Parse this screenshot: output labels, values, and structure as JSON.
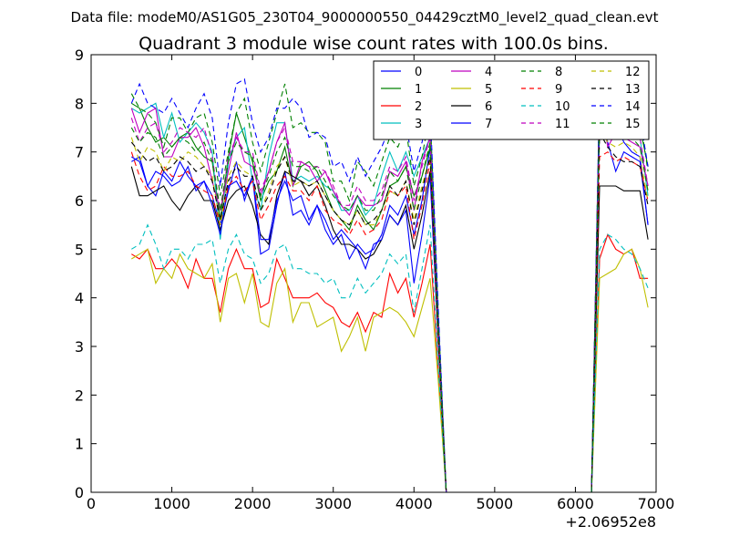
{
  "figure": {
    "suptitle": "Data file: modeM0/AS1G05_230T04_9000000550_04429cztM0_level2_quad_clean.evt"
  },
  "chart_data": {
    "type": "line",
    "title": "Quadrant 3 module wise count rates with 100.0s bins.",
    "xlabel": "",
    "ylabel": "",
    "x_offset_label": "+2.06952e8",
    "xlim": [
      0,
      7000
    ],
    "ylim": [
      0,
      9
    ],
    "x_ticks": [
      "0",
      "1000",
      "2000",
      "3000",
      "4000",
      "5000",
      "6000",
      "7000"
    ],
    "y_ticks": [
      "0",
      "1",
      "2",
      "3",
      "4",
      "5",
      "6",
      "7",
      "8",
      "9"
    ],
    "grid": false,
    "legend_position": "top-right",
    "legend_columns": 4,
    "x": [
      500,
      600,
      700,
      800,
      900,
      1000,
      1100,
      1200,
      1300,
      1400,
      1500,
      1600,
      1700,
      1800,
      1900,
      2000,
      2100,
      2200,
      2300,
      2400,
      2500,
      2600,
      2700,
      2800,
      2900,
      3000,
      3100,
      3200,
      3300,
      3400,
      3500,
      3600,
      3700,
      3800,
      3900,
      4000,
      4100,
      4200,
      4300,
      4400,
      6200,
      6300,
      6400,
      6500,
      6600,
      6700,
      6800,
      6900
    ],
    "series": [
      {
        "name": "0",
        "color": "#0000ff",
        "dash": "solid",
        "values": [
          6.9,
          6.8,
          6.3,
          6.1,
          6.6,
          6.4,
          6.8,
          6.5,
          6.3,
          6.4,
          6.1,
          5.5,
          6.2,
          6.8,
          6.0,
          6.5,
          4.9,
          5.0,
          5.9,
          6.6,
          5.7,
          5.8,
          5.5,
          5.9,
          5.4,
          5.1,
          5.3,
          4.8,
          5.1,
          4.9,
          5.0,
          5.3,
          5.9,
          5.7,
          6.1,
          5.3,
          6.0,
          7.1,
          3.3,
          0,
          0,
          7.8,
          7.2,
          6.6,
          7.0,
          6.9,
          6.8,
          5.5
        ]
      },
      {
        "name": "1",
        "color": "#008000",
        "dash": "solid",
        "values": [
          8.0,
          7.9,
          7.5,
          7.2,
          7.3,
          7.1,
          7.3,
          7.4,
          7.1,
          6.9,
          6.8,
          5.6,
          6.9,
          7.8,
          7.3,
          6.8,
          6.0,
          6.4,
          6.6,
          7.1,
          6.3,
          6.7,
          6.8,
          6.6,
          6.2,
          5.8,
          5.6,
          5.4,
          5.9,
          5.6,
          5.4,
          5.8,
          6.3,
          6.4,
          6.7,
          6.1,
          6.5,
          7.1,
          3.3,
          0,
          0,
          8.1,
          7.8,
          7.5,
          7.7,
          7.6,
          7.5,
          6.7
        ]
      },
      {
        "name": "2",
        "color": "#ff0000",
        "dash": "solid",
        "values": [
          4.9,
          4.8,
          5.0,
          4.6,
          4.6,
          4.8,
          4.6,
          4.2,
          4.8,
          4.4,
          4.4,
          3.7,
          4.6,
          5.0,
          4.6,
          4.6,
          3.8,
          3.9,
          4.8,
          4.4,
          4.0,
          4.0,
          4.0,
          4.1,
          3.9,
          3.8,
          3.5,
          3.4,
          3.7,
          3.3,
          3.7,
          3.6,
          4.5,
          4.1,
          4.4,
          3.6,
          4.3,
          5.1,
          2.5,
          0,
          0,
          4.8,
          5.3,
          5.0,
          4.9,
          5.0,
          4.4,
          4.4
        ]
      },
      {
        "name": "3",
        "color": "#00bfbf",
        "dash": "solid",
        "values": [
          7.9,
          7.8,
          7.9,
          8.0,
          7.3,
          7.8,
          7.2,
          7.4,
          7.6,
          7.4,
          7.0,
          5.2,
          6.8,
          7.3,
          7.5,
          6.4,
          5.8,
          6.9,
          7.6,
          7.6,
          6.4,
          6.5,
          6.4,
          6.5,
          6.3,
          6.2,
          5.8,
          5.8,
          6.1,
          5.7,
          5.9,
          6.5,
          7.0,
          6.6,
          7.0,
          6.5,
          6.9,
          7.3,
          3.4,
          0,
          0,
          8.1,
          7.6,
          7.4,
          7.7,
          7.7,
          7.3,
          6.1
        ]
      },
      {
        "name": "4",
        "color": "#bf00bf",
        "dash": "solid",
        "values": [
          7.9,
          7.4,
          7.8,
          7.9,
          6.9,
          6.9,
          7.3,
          7.3,
          7.5,
          7.1,
          6.4,
          5.8,
          6.6,
          7.4,
          6.8,
          6.7,
          6.1,
          6.6,
          7.2,
          7.6,
          6.3,
          6.8,
          6.7,
          6.4,
          6.6,
          6.2,
          5.9,
          5.7,
          6.1,
          5.9,
          5.9,
          6.0,
          6.6,
          6.5,
          6.8,
          5.8,
          6.8,
          7.3,
          3.4,
          0,
          0,
          8.2,
          7.1,
          7.4,
          7.3,
          7.2,
          7.1,
          6.3
        ]
      },
      {
        "name": "5",
        "color": "#bfbf00",
        "dash": "solid",
        "values": [
          4.8,
          4.9,
          5.0,
          4.3,
          4.6,
          4.4,
          4.9,
          4.6,
          4.5,
          4.4,
          4.7,
          3.5,
          4.4,
          4.5,
          3.9,
          4.5,
          3.5,
          3.4,
          4.3,
          4.6,
          3.5,
          3.9,
          3.9,
          3.4,
          3.5,
          3.6,
          2.9,
          3.2,
          3.6,
          2.9,
          3.6,
          3.7,
          3.8,
          3.7,
          3.5,
          3.2,
          3.8,
          4.4,
          2.3,
          0,
          0,
          4.4,
          4.5,
          4.6,
          4.9,
          5.0,
          4.6,
          3.8
        ]
      },
      {
        "name": "6",
        "color": "#000000",
        "dash": "solid",
        "values": [
          6.7,
          6.1,
          6.1,
          6.2,
          6.3,
          6.0,
          5.8,
          6.1,
          6.3,
          6.0,
          6.0,
          5.4,
          6.0,
          6.2,
          6.3,
          5.9,
          5.3,
          5.1,
          6.1,
          6.6,
          6.5,
          6.4,
          6.1,
          6.3,
          5.9,
          5.4,
          5.1,
          5.1,
          5.0,
          4.8,
          4.9,
          5.2,
          5.7,
          5.5,
          5.9,
          5.0,
          5.7,
          6.6,
          3.1,
          0,
          0,
          6.3,
          6.3,
          6.3,
          6.2,
          6.2,
          6.2,
          5.2
        ]
      },
      {
        "name": "7",
        "color": "#0000ff",
        "dash": "solid",
        "values": [
          6.8,
          6.9,
          6.3,
          6.6,
          6.5,
          6.3,
          6.4,
          6.7,
          6.2,
          6.4,
          5.9,
          5.3,
          6.3,
          6.4,
          6.1,
          6.5,
          5.2,
          5.2,
          6.0,
          6.4,
          6.0,
          6.1,
          5.6,
          5.9,
          5.6,
          5.2,
          5.4,
          5.2,
          5.0,
          4.6,
          5.1,
          5.2,
          5.7,
          5.5,
          5.8,
          4.3,
          5.3,
          6.5,
          3.1,
          0,
          0,
          7.5,
          7.7,
          7.6,
          7.2,
          7.0,
          6.9,
          5.5
        ]
      },
      {
        "name": "8",
        "color": "#008000",
        "dash": "dash",
        "values": [
          8.2,
          7.9,
          7.8,
          7.6,
          7.1,
          7.7,
          7.7,
          7.4,
          7.7,
          7.8,
          7.2,
          6.1,
          7.0,
          7.8,
          8.1,
          7.2,
          6.6,
          7.2,
          7.8,
          8.4,
          7.5,
          7.6,
          7.4,
          7.4,
          7.2,
          6.4,
          6.4,
          6.0,
          6.8,
          6.6,
          6.3,
          6.8,
          7.3,
          7.1,
          7.5,
          6.3,
          6.9,
          7.8,
          3.7,
          0,
          0,
          8.3,
          8.2,
          8.0,
          7.9,
          8.0,
          7.7,
          6.6
        ]
      },
      {
        "name": "9",
        "color": "#ff0000",
        "dash": "dash",
        "values": [
          7.0,
          6.5,
          6.2,
          6.3,
          6.7,
          6.5,
          6.5,
          6.6,
          6.3,
          6.2,
          6.1,
          5.5,
          6.3,
          6.5,
          6.2,
          6.4,
          5.6,
          5.9,
          6.3,
          6.5,
          6.2,
          6.2,
          6.0,
          6.3,
          5.8,
          5.6,
          5.5,
          5.3,
          5.6,
          5.3,
          5.4,
          5.6,
          6.2,
          6.1,
          6.3,
          5.2,
          5.9,
          6.8,
          3.1,
          0,
          0,
          6.9,
          7.0,
          6.8,
          6.9,
          6.8,
          6.7,
          6.0
        ]
      },
      {
        "name": "10",
        "color": "#00bfbf",
        "dash": "dash",
        "values": [
          5.0,
          5.1,
          5.5,
          5.1,
          4.6,
          5.0,
          5.0,
          4.8,
          5.1,
          5.1,
          5.2,
          4.3,
          5.0,
          5.3,
          4.9,
          4.8,
          4.3,
          4.5,
          5.0,
          5.1,
          4.6,
          4.6,
          4.5,
          4.5,
          4.3,
          4.4,
          4.0,
          4.0,
          4.4,
          4.1,
          4.3,
          4.5,
          4.9,
          4.7,
          4.9,
          3.7,
          4.6,
          5.5,
          2.6,
          0,
          0,
          5.0,
          5.3,
          5.2,
          5.0,
          4.9,
          4.6,
          4.2
        ]
      },
      {
        "name": "11",
        "color": "#bf00bf",
        "dash": "dash",
        "values": [
          7.7,
          7.2,
          7.5,
          7.6,
          7.0,
          7.2,
          7.5,
          7.4,
          7.3,
          7.5,
          6.9,
          5.8,
          6.9,
          7.3,
          7.0,
          7.0,
          6.2,
          6.6,
          7.2,
          7.5,
          6.8,
          6.8,
          6.7,
          6.7,
          6.6,
          6.3,
          5.9,
          5.9,
          6.3,
          6.0,
          6.0,
          6.2,
          6.7,
          6.6,
          6.9,
          6.0,
          6.7,
          7.3,
          3.4,
          0,
          0,
          8.0,
          7.6,
          7.5,
          7.6,
          7.5,
          7.3,
          6.3
        ]
      },
      {
        "name": "12",
        "color": "#bfbf00",
        "dash": "dash",
        "values": [
          7.3,
          6.8,
          7.1,
          7.0,
          6.6,
          6.9,
          6.8,
          7.0,
          6.9,
          6.7,
          6.5,
          5.5,
          6.5,
          6.8,
          6.6,
          6.5,
          5.8,
          6.2,
          6.7,
          6.9,
          6.3,
          6.4,
          6.3,
          6.4,
          6.1,
          5.8,
          5.6,
          5.5,
          5.8,
          5.5,
          5.5,
          5.8,
          6.2,
          6.1,
          6.4,
          5.6,
          6.3,
          6.9,
          3.2,
          0,
          0,
          7.5,
          7.2,
          7.1,
          7.2,
          7.1,
          6.9,
          6.0
        ]
      },
      {
        "name": "13",
        "color": "#000000",
        "dash": "dash",
        "values": [
          7.2,
          7.0,
          6.8,
          6.9,
          6.6,
          6.7,
          6.9,
          6.8,
          6.6,
          6.7,
          6.4,
          5.6,
          6.4,
          6.7,
          6.5,
          6.5,
          5.8,
          6.1,
          6.6,
          6.9,
          6.4,
          6.4,
          6.3,
          6.4,
          6.1,
          5.8,
          5.6,
          5.5,
          5.8,
          5.5,
          5.6,
          5.8,
          6.3,
          6.1,
          6.4,
          5.5,
          6.2,
          6.9,
          3.2,
          0,
          0,
          7.4,
          7.1,
          6.9,
          6.8,
          6.8,
          6.7,
          5.9
        ]
      },
      {
        "name": "14",
        "color": "#0000ff",
        "dash": "dash",
        "values": [
          8.0,
          8.4,
          8.0,
          7.9,
          7.8,
          8.1,
          7.8,
          7.5,
          7.9,
          8.2,
          7.7,
          6.3,
          7.6,
          8.4,
          8.5,
          7.6,
          7.0,
          7.3,
          7.9,
          7.9,
          8.1,
          7.9,
          7.3,
          7.4,
          7.3,
          6.7,
          6.8,
          6.4,
          6.9,
          6.5,
          6.8,
          7.1,
          7.5,
          7.3,
          7.6,
          6.6,
          7.2,
          7.9,
          3.8,
          0,
          0,
          8.3,
          8.1,
          7.9,
          7.9,
          7.8,
          7.7,
          6.7
        ]
      },
      {
        "name": "15",
        "color": "#008000",
        "dash": "dash",
        "values": [
          7.5,
          7.2,
          7.4,
          7.3,
          6.9,
          7.1,
          7.3,
          7.2,
          7.0,
          7.2,
          6.8,
          5.8,
          6.8,
          7.2,
          7.0,
          6.9,
          6.1,
          6.5,
          7.0,
          7.3,
          6.7,
          6.7,
          6.6,
          6.7,
          6.4,
          6.1,
          5.9,
          5.8,
          6.1,
          5.8,
          5.8,
          6.1,
          6.6,
          6.4,
          6.7,
          5.8,
          6.5,
          7.2,
          3.4,
          0,
          0,
          7.8,
          7.5,
          7.4,
          7.4,
          7.3,
          7.1,
          6.2
        ]
      }
    ]
  }
}
